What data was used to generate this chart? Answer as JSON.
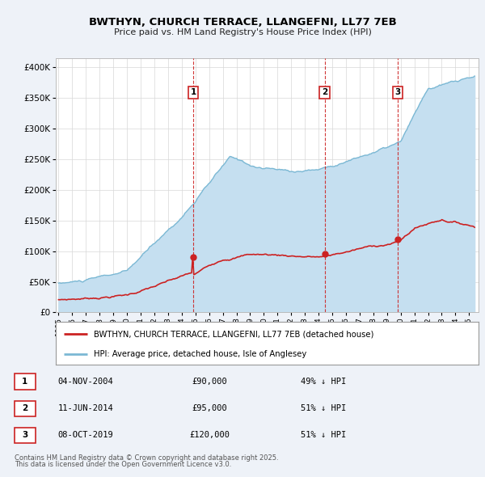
{
  "title1": "BWTHYN, CHURCH TERRACE, LLANGEFNI, LL77 7EB",
  "title2": "Price paid vs. HM Land Registry's House Price Index (HPI)",
  "ylabel_ticks": [
    "£0",
    "£50K",
    "£100K",
    "£150K",
    "£200K",
    "£250K",
    "£300K",
    "£350K",
    "£400K"
  ],
  "ytick_vals": [
    0,
    50000,
    100000,
    150000,
    200000,
    250000,
    300000,
    350000,
    400000
  ],
  "ylim": [
    0,
    415000
  ],
  "xlim_start": 1994.8,
  "xlim_end": 2025.7,
  "hpi_color": "#7bb8d4",
  "hpi_fill_color": "#c5dff0",
  "price_color": "#cc2222",
  "background_color": "#eef2f8",
  "plot_bg_color": "#ffffff",
  "transactions": [
    {
      "num": 1,
      "date_str": "04-NOV-2004",
      "year": 2004.84,
      "price": 90000,
      "pct": "49%"
    },
    {
      "num": 2,
      "date_str": "11-JUN-2014",
      "year": 2014.44,
      "price": 95000,
      "pct": "51%"
    },
    {
      "num": 3,
      "date_str": "08-OCT-2019",
      "year": 2019.77,
      "price": 120000,
      "pct": "51%"
    }
  ],
  "legend_label_red": "BWTHYN, CHURCH TERRACE, LLANGEFNI, LL77 7EB (detached house)",
  "legend_label_blue": "HPI: Average price, detached house, Isle of Anglesey",
  "footer1": "Contains HM Land Registry data © Crown copyright and database right 2025.",
  "footer2": "This data is licensed under the Open Government Licence v3.0."
}
